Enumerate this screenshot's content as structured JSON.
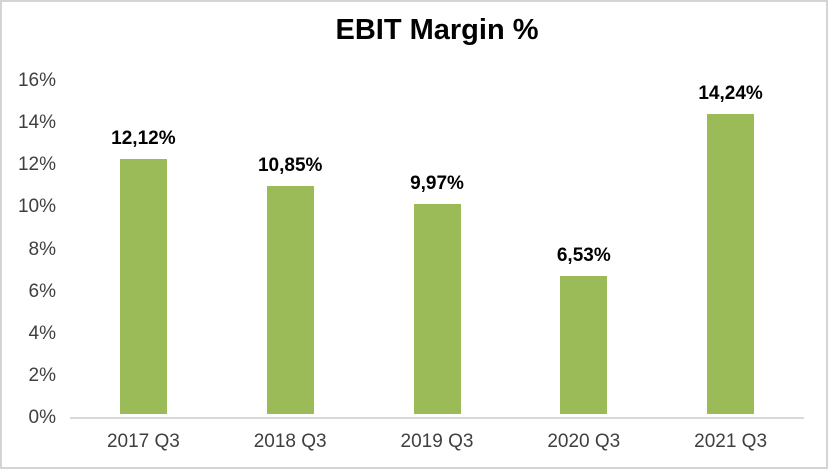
{
  "chart_data": {
    "type": "bar",
    "title": "EBIT Margin %",
    "categories": [
      "2017 Q3",
      "2018 Q3",
      "2019 Q3",
      "2020 Q3",
      "2021 Q3"
    ],
    "values": [
      12.12,
      10.85,
      9.97,
      6.53,
      14.24
    ],
    "value_labels": [
      "12,12%",
      "10,85%",
      "9,97%",
      "6,53%",
      "14,24%"
    ],
    "series": [
      {
        "name": "EBIT Margin %",
        "values": [
          12.12,
          10.85,
          9.97,
          6.53,
          14.24
        ]
      }
    ],
    "xlabel": "",
    "ylabel": "",
    "ylim": [
      0,
      16
    ],
    "y_ticks": [
      0,
      2,
      4,
      6,
      8,
      10,
      12,
      14,
      16
    ],
    "y_tick_labels": [
      "0%",
      "2%",
      "4%",
      "6%",
      "8%",
      "10%",
      "12%",
      "14%",
      "16%"
    ],
    "grid": false,
    "legend": "none",
    "colors": {
      "bar": "#9bbb59",
      "axis_line": "#d9d9d9",
      "frame_border": "#d4d4d4",
      "axis_text": "#3f3f3f",
      "title_text": "#000000",
      "data_label_text": "#000000",
      "background": "#ffffff"
    }
  }
}
